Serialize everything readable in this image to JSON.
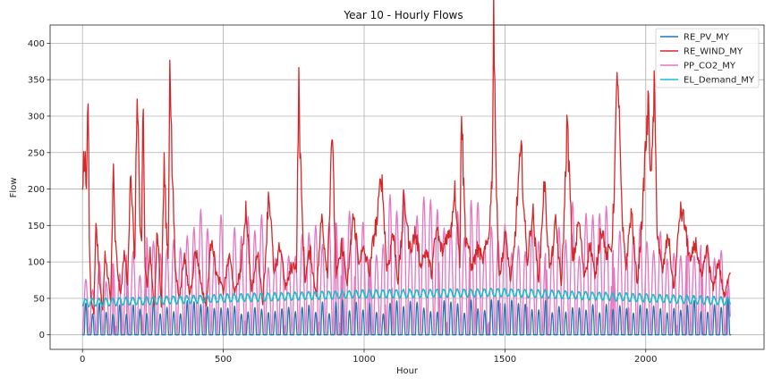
{
  "chart_data": {
    "type": "line",
    "title": "Year 10 - Hourly Flows",
    "xlabel": "Hour",
    "ylabel": "Flow",
    "xlim": [
      -115,
      2420
    ],
    "ylim": [
      -20,
      425
    ],
    "xticks": [
      0,
      500,
      1000,
      1500,
      2000
    ],
    "yticks": [
      0,
      50,
      100,
      150,
      200,
      250,
      300,
      350,
      400
    ],
    "grid": true,
    "legend_position": "top-right",
    "series": [
      {
        "name": "RE_PV_MY",
        "color": "#1f77b4",
        "model": {
          "kind": "daily-solar",
          "period": 24,
          "daylight_hours": 11,
          "peak_min": 28,
          "peak_max": 48,
          "start": 0,
          "end": 2303
        }
      },
      {
        "name": "RE_WIND_MY",
        "color": "#d62728",
        "model": {
          "kind": "knots",
          "base": 20
        },
        "x": [
          0,
          5,
          10,
          15,
          20,
          24,
          30,
          40,
          48,
          60,
          72,
          80,
          90,
          100,
          110,
          115,
          125,
          135,
          150,
          160,
          170,
          185,
          195,
          205,
          210,
          215,
          222,
          230,
          240,
          255,
          265,
          280,
          290,
          300,
          305,
          310,
          318,
          330,
          345,
          360,
          380,
          400,
          420,
          440,
          460,
          480,
          500,
          520,
          540,
          560,
          580,
          600,
          620,
          640,
          660,
          680,
          700,
          720,
          740,
          760,
          768,
          775,
          790,
          810,
          830,
          850,
          870,
          885,
          900,
          920,
          940,
          960,
          980,
          1000,
          1020,
          1040,
          1060,
          1080,
          1100,
          1120,
          1140,
          1160,
          1180,
          1200,
          1220,
          1240,
          1260,
          1280,
          1300,
          1320,
          1340,
          1345,
          1360,
          1380,
          1400,
          1420,
          1440,
          1455,
          1460,
          1470,
          1480,
          1500,
          1520,
          1540,
          1560,
          1580,
          1600,
          1620,
          1640,
          1660,
          1680,
          1700,
          1720,
          1728,
          1740,
          1760,
          1780,
          1800,
          1820,
          1840,
          1860,
          1880,
          1900,
          1915,
          1930,
          1950,
          1970,
          1990,
          2010,
          2020,
          2030,
          2040,
          2060,
          2080,
          2100,
          2120,
          2140,
          2160,
          2180,
          2200,
          2220,
          2240,
          2260,
          2280,
          2300
        ],
        "values": [
          205,
          228,
          210,
          180,
          337,
          150,
          55,
          30,
          148,
          70,
          35,
          120,
          80,
          40,
          222,
          150,
          95,
          50,
          110,
          70,
          258,
          80,
          333,
          150,
          130,
          352,
          90,
          60,
          110,
          40,
          145,
          35,
          250,
          140,
          115,
          383,
          205,
          90,
          55,
          100,
          60,
          110,
          75,
          40,
          135,
          80,
          55,
          120,
          50,
          95,
          160,
          65,
          110,
          45,
          195,
          80,
          130,
          60,
          100,
          85,
          333,
          240,
          75,
          110,
          60,
          150,
          95,
          268,
          80,
          130,
          60,
          180,
          90,
          130,
          75,
          160,
          210,
          95,
          140,
          70,
          190,
          110,
          155,
          85,
          130,
          75,
          160,
          105,
          140,
          200,
          90,
          355,
          140,
          85,
          130,
          90,
          145,
          210,
          406,
          180,
          90,
          130,
          75,
          160,
          240,
          105,
          155,
          85,
          190,
          100,
          140,
          75,
          270,
          205,
          110,
          155,
          80,
          130,
          70,
          165,
          95,
          140,
          333,
          170,
          100,
          155,
          80,
          160,
          353,
          220,
          310,
          140,
          95,
          125,
          70,
          150,
          165,
          90,
          130,
          75,
          115,
          65,
          95,
          55,
          84
        ]
      },
      {
        "name": "PP_CO2_MY",
        "color": "#e377c2",
        "model": {
          "kind": "oscillating",
          "period": 24,
          "floor": 0
        },
        "x": [
          0,
          100,
          200,
          300,
          400,
          500,
          600,
          700,
          800,
          900,
          1000,
          1100,
          1200,
          1300,
          1400,
          1500,
          1600,
          1700,
          1800,
          1900,
          2000,
          2100,
          2200,
          2300
        ],
        "amplitude": [
          90,
          120,
          140,
          170,
          180,
          185,
          170,
          150,
          185,
          175,
          165,
          200,
          210,
          195,
          190,
          200,
          175,
          180,
          200,
          190,
          170,
          165,
          150,
          125
        ]
      },
      {
        "name": "EL_Demand_MY",
        "color": "#17becf",
        "model": {
          "kind": "daily-demand",
          "period": 24,
          "base": 47,
          "swing": 9,
          "trend": [
            [
              0,
              44
            ],
            [
              1000,
              56
            ],
            [
              1500,
              58
            ],
            [
              2300,
              46
            ]
          ]
        }
      }
    ]
  }
}
